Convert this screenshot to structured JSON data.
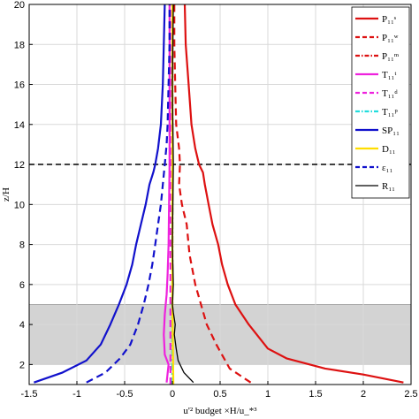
{
  "chart_data": {
    "type": "line",
    "xlabel": "u'² budget ×H/u_*³",
    "ylabel": "z/H",
    "xlim": [
      -1.5,
      2.5
    ],
    "ylim": [
      1,
      20
    ],
    "x_ticks": [
      "-1.5",
      "-1",
      "-0.5",
      "0",
      "0.5",
      "1",
      "1.5",
      "2",
      "2.5"
    ],
    "y_ticks": [
      "2",
      "4",
      "6",
      "8",
      "10",
      "12",
      "14",
      "16",
      "18",
      "20"
    ],
    "grid": true,
    "legend_position": "top-right",
    "shaded_band": {
      "z_from": 2,
      "z_to": 5,
      "color": "#d3d3d3"
    },
    "reference_line": {
      "z": 12,
      "style": "dashed",
      "color": "#000000"
    },
    "series": [
      {
        "name": "P₁₁ˢ",
        "color": "#dd1111",
        "dash": "solid",
        "points": [
          [
            2.42,
            1.1
          ],
          [
            2.0,
            1.5
          ],
          [
            1.6,
            1.8
          ],
          [
            1.2,
            2.3
          ],
          [
            1.0,
            2.8
          ],
          [
            0.8,
            4.0
          ],
          [
            0.66,
            5.0
          ],
          [
            0.58,
            6.0
          ],
          [
            0.52,
            7.0
          ],
          [
            0.48,
            8.0
          ],
          [
            0.42,
            9.0
          ],
          [
            0.38,
            10.0
          ],
          [
            0.34,
            11.0
          ],
          [
            0.32,
            11.6
          ],
          [
            0.28,
            12.0
          ],
          [
            0.24,
            12.8
          ],
          [
            0.2,
            14.0
          ],
          [
            0.17,
            16.0
          ],
          [
            0.14,
            18.0
          ],
          [
            0.13,
            20.0
          ]
        ]
      },
      {
        "name": "P₁₁ʷ",
        "color": "#dd1111",
        "dash": "dashed",
        "points": [
          [
            0.82,
            1.1
          ],
          [
            0.6,
            1.8
          ],
          [
            0.46,
            3.0
          ],
          [
            0.36,
            4.0
          ],
          [
            0.3,
            5.0
          ],
          [
            0.24,
            6.0
          ],
          [
            0.18,
            7.5
          ],
          [
            0.15,
            9.0
          ],
          [
            0.1,
            10.0
          ],
          [
            0.07,
            11.0
          ],
          [
            0.08,
            12.0
          ],
          [
            0.07,
            12.8
          ],
          [
            0.04,
            14.0
          ],
          [
            0.03,
            16.0
          ],
          [
            0.02,
            18.0
          ],
          [
            0.02,
            20.0
          ]
        ]
      },
      {
        "name": "P₁₁ᵐ",
        "color": "#dd1111",
        "dash": "dashdot",
        "points": [
          [
            0.0,
            1.0
          ],
          [
            0.0,
            20.0
          ]
        ]
      },
      {
        "name": "T₁₁ᵗ",
        "color": "#ee22dd",
        "dash": "solid",
        "points": [
          [
            -0.06,
            1.1
          ],
          [
            -0.04,
            2.0
          ],
          [
            -0.08,
            2.5
          ],
          [
            -0.09,
            3.5
          ],
          [
            -0.08,
            4.5
          ],
          [
            -0.06,
            5.5
          ],
          [
            -0.05,
            6.5
          ],
          [
            -0.04,
            8.0
          ],
          [
            -0.03,
            12.0
          ],
          [
            -0.03,
            16.0
          ],
          [
            -0.03,
            20.0
          ]
        ]
      },
      {
        "name": "T₁₁ᵈ",
        "color": "#ee22dd",
        "dash": "dashed",
        "points": [
          [
            -0.02,
            1.0
          ],
          [
            -0.02,
            20.0
          ]
        ]
      },
      {
        "name": "T₁₁ᵖ",
        "color": "#22dddd",
        "dash": "dashdot",
        "points": [
          [
            0.0,
            1.0
          ],
          [
            0.0,
            20.0
          ]
        ]
      },
      {
        "name": "SP₁₁",
        "color": "#1111cc",
        "dash": "solid",
        "points": [
          [
            -1.45,
            1.1
          ],
          [
            -1.15,
            1.6
          ],
          [
            -0.9,
            2.2
          ],
          [
            -0.75,
            3.0
          ],
          [
            -0.65,
            4.0
          ],
          [
            -0.56,
            5.0
          ],
          [
            -0.48,
            6.0
          ],
          [
            -0.42,
            7.0
          ],
          [
            -0.38,
            8.0
          ],
          [
            -0.33,
            9.0
          ],
          [
            -0.28,
            10.0
          ],
          [
            -0.24,
            11.0
          ],
          [
            -0.2,
            11.6
          ],
          [
            -0.18,
            12.0
          ],
          [
            -0.15,
            12.8
          ],
          [
            -0.12,
            14.0
          ],
          [
            -0.1,
            16.0
          ],
          [
            -0.09,
            18.0
          ],
          [
            -0.08,
            20.0
          ]
        ]
      },
      {
        "name": "D₁₁",
        "color": "#ffdd00",
        "dash": "solid",
        "points": [
          [
            0.01,
            1.0
          ],
          [
            0.0,
            5.0
          ],
          [
            0.0,
            20.0
          ]
        ]
      },
      {
        "name": "ε₁₁",
        "color": "#1111cc",
        "dash": "dashed",
        "points": [
          [
            -0.9,
            1.1
          ],
          [
            -0.7,
            1.6
          ],
          [
            -0.55,
            2.3
          ],
          [
            -0.44,
            3.0
          ],
          [
            -0.36,
            4.0
          ],
          [
            -0.3,
            5.0
          ],
          [
            -0.25,
            6.0
          ],
          [
            -0.21,
            7.0
          ],
          [
            -0.18,
            8.0
          ],
          [
            -0.15,
            9.0
          ],
          [
            -0.12,
            10.0
          ],
          [
            -0.1,
            11.0
          ],
          [
            -0.08,
            12.0
          ],
          [
            -0.06,
            13.0
          ],
          [
            -0.05,
            14.0
          ],
          [
            -0.04,
            16.0
          ],
          [
            -0.03,
            18.0
          ],
          [
            -0.03,
            20.0
          ]
        ]
      },
      {
        "name": "R₁₁",
        "color": "#000000",
        "dash": "solid",
        "points": [
          [
            0.22,
            1.1
          ],
          [
            0.12,
            1.6
          ],
          [
            0.06,
            2.2
          ],
          [
            0.04,
            2.8
          ],
          [
            0.02,
            3.5
          ],
          [
            0.03,
            4.0
          ],
          [
            0.01,
            4.6
          ],
          [
            0.0,
            5.0
          ],
          [
            0.01,
            6.0
          ],
          [
            0.0,
            8.0
          ],
          [
            0.01,
            12.0
          ],
          [
            0.0,
            16.0
          ],
          [
            0.01,
            20.0
          ]
        ]
      }
    ]
  }
}
